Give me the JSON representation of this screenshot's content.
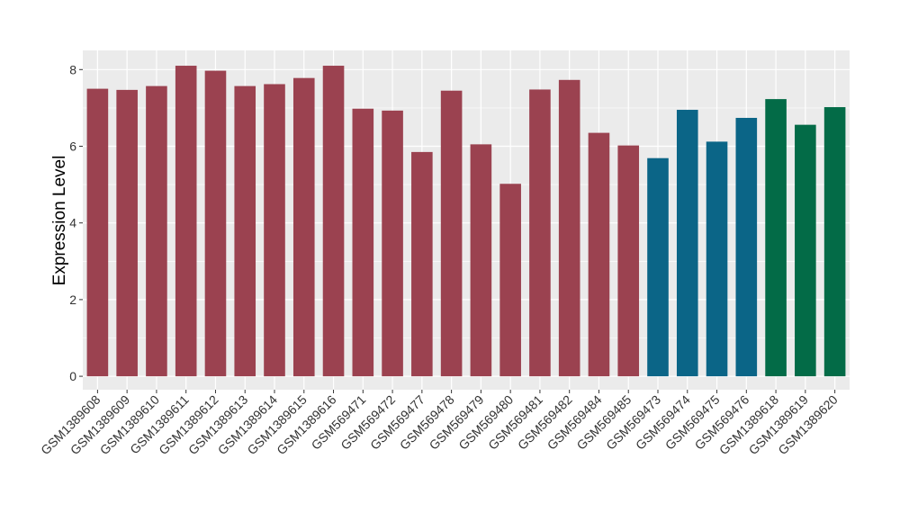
{
  "chart_data": {
    "type": "bar",
    "title": "",
    "xlabel": "",
    "ylabel": "Expression Level",
    "ylim": [
      -0.35,
      8.5
    ],
    "yticks": [
      0,
      2,
      4,
      6,
      8
    ],
    "grid": true,
    "legend": "none",
    "panel_background": "#EBEBEB",
    "grid_color": "#FFFFFF",
    "categories": [
      "GSM1389608",
      "GSM1389609",
      "GSM1389610",
      "GSM1389611",
      "GSM1389612",
      "GSM1389613",
      "GSM1389614",
      "GSM1389615",
      "GSM1389616",
      "GSM569471",
      "GSM569472",
      "GSM569477",
      "GSM569478",
      "GSM569479",
      "GSM569480",
      "GSM569481",
      "GSM569482",
      "GSM569484",
      "GSM569485",
      "GSM569473",
      "GSM569474",
      "GSM569475",
      "GSM569476",
      "GSM1389618",
      "GSM1389619",
      "GSM1389620"
    ],
    "values": [
      7.5,
      7.47,
      7.57,
      8.1,
      7.97,
      7.57,
      7.62,
      7.78,
      8.1,
      6.98,
      6.93,
      5.85,
      7.45,
      6.05,
      5.02,
      7.48,
      7.73,
      6.35,
      6.02,
      5.69,
      6.95,
      6.12,
      6.74,
      7.23,
      6.56,
      7.02
    ],
    "colors": [
      "#9B4250",
      "#9B4250",
      "#9B4250",
      "#9B4250",
      "#9B4250",
      "#9B4250",
      "#9B4250",
      "#9B4250",
      "#9B4250",
      "#9B4250",
      "#9B4250",
      "#9B4250",
      "#9B4250",
      "#9B4250",
      "#9B4250",
      "#9B4250",
      "#9B4250",
      "#9B4250",
      "#9B4250",
      "#0B6587",
      "#0B6587",
      "#0B6587",
      "#0B6587",
      "#036B47",
      "#036B47",
      "#036B47"
    ]
  }
}
